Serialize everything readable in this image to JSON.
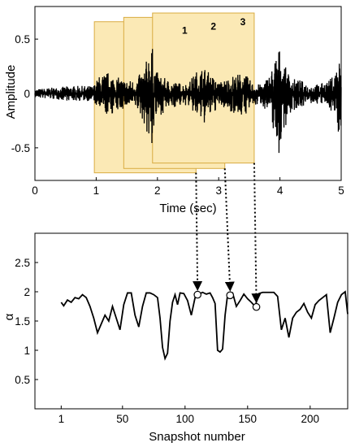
{
  "colors": {
    "axis": "#000000",
    "series": "#000000",
    "window_fill": "#fbe9b5",
    "window_stroke": "#d9ac42",
    "arrow": "#000000"
  },
  "chart_data": [
    {
      "type": "line",
      "xlabel": "Time (sec)",
      "ylabel": "Amplitude",
      "xlim": [
        0,
        5
      ],
      "ylim": [
        -0.8,
        0.8
      ],
      "xticks": [
        "0",
        "1",
        "2",
        "3",
        "4",
        "5"
      ],
      "xtick_values": [
        0,
        1,
        2,
        3,
        4,
        5
      ],
      "yticks": [
        "0.5",
        "0",
        "-0.5"
      ],
      "ytick_values": [
        0.5,
        0,
        -0.5
      ],
      "grid": false,
      "series": [
        {
          "envelope": {
            "x": [
              0,
              0.2,
              0.4,
              0.6,
              0.8,
              0.95,
              1.05,
              1.2,
              1.35,
              1.5,
              1.65,
              1.8,
              1.88,
              1.92,
              1.97,
              2.05,
              2.2,
              2.35,
              2.5,
              2.62,
              2.75,
              2.9,
              3.0,
              3.2,
              3.4,
              3.55,
              3.7,
              3.85,
              3.98,
              4.05,
              4.2,
              4.35,
              4.5,
              4.65,
              4.8,
              4.9,
              4.95,
              5.0
            ],
            "upper": [
              0.04,
              0.05,
              0.06,
              0.07,
              0.07,
              0.07,
              0.16,
              0.2,
              0.15,
              0.12,
              0.13,
              0.25,
              0.48,
              0.42,
              0.22,
              0.16,
              0.12,
              0.1,
              0.09,
              0.2,
              0.25,
              0.16,
              0.1,
              0.16,
              0.2,
              0.1,
              0.08,
              0.2,
              0.45,
              0.28,
              0.14,
              0.12,
              0.08,
              0.09,
              0.12,
              0.2,
              0.36,
              0.28
            ],
            "lower": [
              -0.04,
              -0.05,
              -0.06,
              -0.07,
              -0.07,
              -0.07,
              -0.17,
              -0.21,
              -0.17,
              -0.13,
              -0.14,
              -0.3,
              -0.55,
              -0.48,
              -0.26,
              -0.2,
              -0.14,
              -0.12,
              -0.11,
              -0.22,
              -0.29,
              -0.2,
              -0.12,
              -0.17,
              -0.22,
              -0.13,
              -0.1,
              -0.22,
              -0.6,
              -0.35,
              -0.17,
              -0.12,
              -0.1,
              -0.1,
              -0.13,
              -0.22,
              -0.38,
              -0.3
            ]
          }
        }
      ],
      "windows": [
        {
          "label": "1",
          "x": [
            0.97,
            2.63
          ],
          "y": [
            -0.73,
            0.66
          ]
        },
        {
          "label": "2",
          "x": [
            1.45,
            3.1
          ],
          "y": [
            -0.69,
            0.7
          ]
        },
        {
          "label": "3",
          "x": [
            1.92,
            3.58
          ],
          "y": [
            -0.64,
            0.74
          ]
        }
      ]
    },
    {
      "type": "line",
      "xlabel": "Snapshot number",
      "ylabel": "α",
      "xlim": [
        -20,
        230
      ],
      "ylim": [
        0,
        3
      ],
      "xticks": [
        "1",
        "50",
        "100",
        "150",
        "200"
      ],
      "xtick_values": [
        1,
        50,
        100,
        150,
        200
      ],
      "yticks": [
        "2.5",
        "2",
        "1.5",
        "1",
        "0.5"
      ],
      "ytick_values": [
        2.5,
        2,
        1.5,
        1,
        0.5
      ],
      "grid": false,
      "series": [
        {
          "x": [
            1,
            3,
            6,
            9,
            12,
            15,
            18,
            21,
            24,
            27,
            30,
            33,
            36,
            39,
            42,
            45,
            48,
            51,
            54,
            57,
            60,
            63,
            66,
            69,
            72,
            75,
            78,
            80,
            82,
            84,
            86,
            88,
            90,
            92,
            94,
            96,
            99,
            102,
            105,
            108,
            111,
            114,
            117,
            120,
            122,
            124,
            126,
            128,
            130,
            132,
            134,
            136,
            138,
            141,
            144,
            147,
            150,
            153,
            156,
            159,
            162,
            165,
            168,
            171,
            174,
            177,
            180,
            183,
            186,
            189,
            192,
            195,
            198,
            201,
            204,
            207,
            210,
            213,
            216,
            219,
            222,
            225,
            228,
            230
          ],
          "values": [
            1.82,
            1.76,
            1.86,
            1.82,
            1.9,
            1.88,
            1.95,
            1.9,
            1.75,
            1.55,
            1.3,
            1.45,
            1.6,
            1.5,
            1.75,
            1.55,
            1.35,
            1.78,
            1.98,
            1.98,
            1.6,
            1.4,
            1.75,
            1.98,
            1.98,
            1.95,
            1.9,
            1.55,
            1.05,
            0.86,
            0.95,
            1.5,
            1.82,
            1.95,
            1.78,
            1.98,
            1.97,
            1.85,
            1.6,
            1.9,
            1.96,
            1.99,
            1.96,
            1.98,
            1.9,
            1.8,
            1.0,
            0.97,
            1.02,
            1.6,
            1.95,
            1.97,
            1.98,
            1.75,
            1.85,
            1.96,
            1.88,
            1.82,
            1.75,
            1.97,
            1.99,
            1.99,
            1.99,
            1.99,
            1.92,
            1.35,
            1.55,
            1.22,
            1.55,
            1.65,
            1.7,
            1.8,
            1.65,
            1.55,
            1.78,
            1.85,
            1.9,
            1.95,
            1.3,
            1.55,
            1.82,
            1.95,
            2.0,
            1.62
          ]
        }
      ],
      "markers": [
        {
          "label": "1",
          "x": 110,
          "y": 1.95
        },
        {
          "label": "2",
          "x": 136,
          "y": 1.94
        },
        {
          "label": "3",
          "x": 157,
          "y": 1.74
        }
      ]
    }
  ]
}
